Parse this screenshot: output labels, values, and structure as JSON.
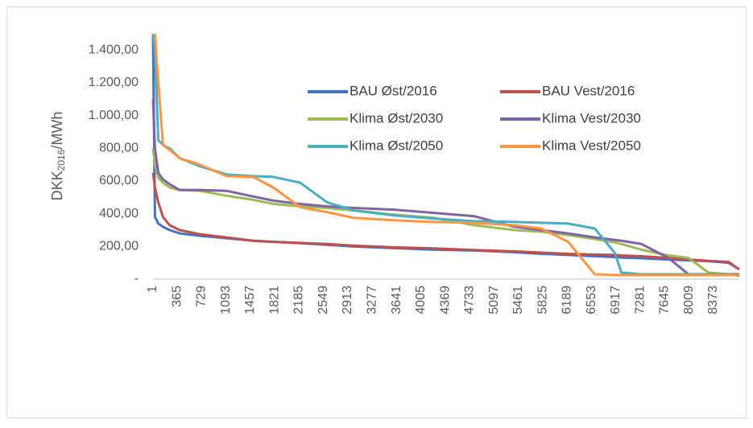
{
  "chart_data": {
    "type": "line",
    "y_label": [
      "DKK",
      "2016",
      "/MWh"
    ],
    "x": [
      1,
      30,
      80,
      150,
      250,
      400,
      700,
      1100,
      1500,
      1800,
      2200,
      2600,
      3000,
      3600,
      4200,
      4800,
      5400,
      5800,
      6200,
      6600,
      6900,
      7000,
      7300,
      7700,
      8000,
      8300,
      8600,
      8760
    ],
    "xlim": [
      1,
      8760
    ],
    "xticks": [
      1,
      365,
      729,
      1093,
      1457,
      1821,
      2185,
      2549,
      2913,
      3277,
      3641,
      4005,
      4369,
      4733,
      5097,
      5461,
      5825,
      6189,
      6553,
      6917,
      7281,
      7645,
      8009,
      8373
    ],
    "ylim": [
      0,
      1500
    ],
    "yticks": [
      {
        "value": 0,
        "label": "-"
      },
      {
        "value": 200,
        "label": "200,00"
      },
      {
        "value": 400,
        "label": "400,00"
      },
      {
        "value": 600,
        "label": "600,00"
      },
      {
        "value": 800,
        "label": "800,00"
      },
      {
        "value": 1000,
        "label": "1.000,00"
      },
      {
        "value": 1200,
        "label": "1.200,00"
      },
      {
        "value": 1400,
        "label": "1.400,00"
      }
    ],
    "legend": "top-center",
    "series": [
      {
        "name": "BAU Øst/2016",
        "color": "#4472c4",
        "values": [
          1500,
          380,
          340,
          320,
          300,
          280,
          265,
          250,
          235,
          228,
          220,
          210,
          200,
          190,
          180,
          175,
          165,
          155,
          148,
          140,
          135,
          132,
          128,
          120,
          115,
          110,
          100,
          60
        ]
      },
      {
        "name": "BAU Vest/2016",
        "color": "#c0504d",
        "values": [
          650,
          560,
          470,
          380,
          330,
          300,
          275,
          255,
          235,
          228,
          222,
          215,
          205,
          195,
          188,
          178,
          170,
          162,
          155,
          150,
          148,
          145,
          140,
          130,
          120,
          112,
          105,
          60
        ]
      },
      {
        "name": "Klima Øst/2030",
        "color": "#9bbb59",
        "values": [
          800,
          700,
          620,
          590,
          560,
          545,
          540,
          510,
          485,
          460,
          445,
          435,
          420,
          395,
          375,
          330,
          300,
          290,
          270,
          245,
          225,
          215,
          180,
          145,
          130,
          40,
          30,
          30
        ]
      },
      {
        "name": "Klima Vest/2030",
        "color": "#8064a2",
        "values": [
          1100,
          800,
          650,
          610,
          580,
          545,
          545,
          540,
          505,
          480,
          460,
          445,
          435,
          425,
          405,
          385,
          320,
          300,
          280,
          255,
          240,
          235,
          215,
          130,
          30,
          30,
          30,
          30
        ]
      },
      {
        "name": "Klima Øst/2050",
        "color": "#4bacc6",
        "values": [
          1500,
          1400,
          850,
          820,
          800,
          740,
          690,
          640,
          630,
          625,
          590,
          470,
          420,
          390,
          370,
          355,
          350,
          345,
          340,
          310,
          160,
          40,
          30,
          30,
          30,
          30,
          30,
          20
        ]
      },
      {
        "name": "Klima Vest/2050",
        "color": "#f79646",
        "values": [
          1500,
          1500,
          1200,
          820,
          790,
          740,
          700,
          630,
          625,
          560,
          440,
          410,
          375,
          360,
          350,
          345,
          330,
          310,
          230,
          30,
          25,
          25,
          25,
          25,
          25,
          25,
          25,
          25
        ]
      }
    ]
  }
}
